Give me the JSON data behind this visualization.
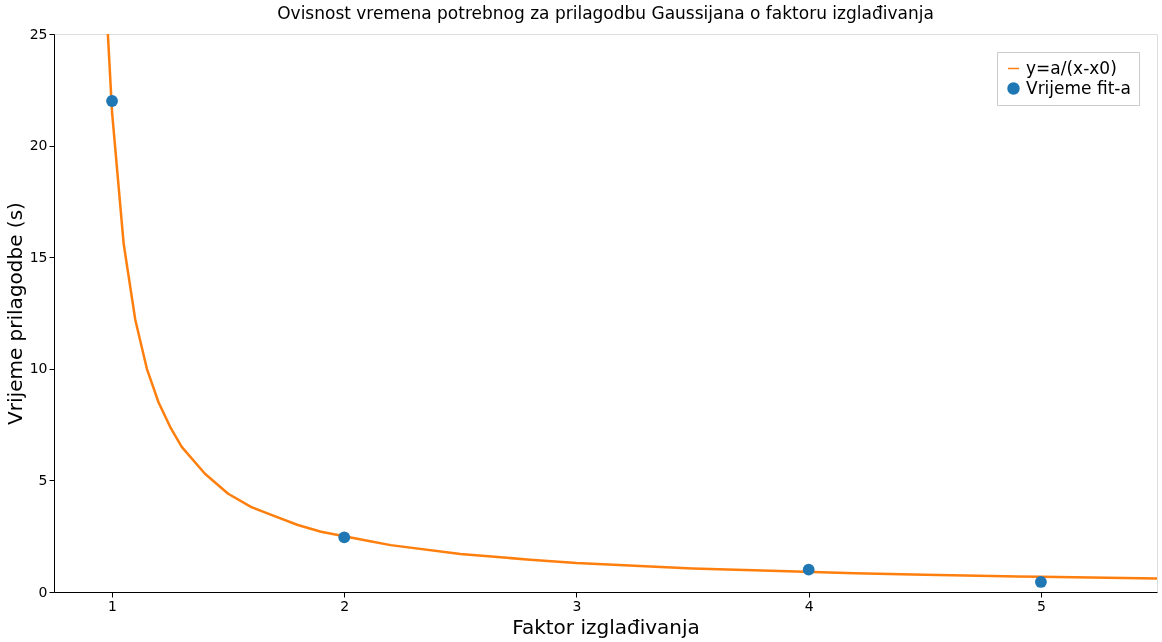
{
  "chart_data": {
    "type": "scatter",
    "title": "Ovisnost vremena potrebnog za prilagodbu Gaussijana o faktoru izglađivanja",
    "xlabel": "Faktor izglađivanja",
    "ylabel": "Vrijeme prilagodbe (s)",
    "xlim": [
      0.75,
      5.5
    ],
    "ylim": [
      0,
      25
    ],
    "xticks": [
      1,
      2,
      3,
      4,
      5
    ],
    "yticks": [
      0,
      5,
      10,
      15,
      20,
      25
    ],
    "grid": false,
    "legend": "top right",
    "series": [
      {
        "name": "y=a/(x-x0)",
        "type": "line",
        "color": "#ff7f0e",
        "line_style": "solid",
        "x": [
          0.982,
          1.0,
          1.05,
          1.1,
          1.15,
          1.2,
          1.25,
          1.3,
          1.4,
          1.5,
          1.6,
          1.7,
          1.8,
          1.9,
          2.1,
          2.2,
          2.5,
          2.8,
          3.0,
          3.5,
          3.8,
          4.2,
          4.5,
          5.0,
          5.5
        ],
        "values": [
          25,
          21.5,
          15.6,
          12.2,
          10.0,
          8.5,
          7.4,
          6.5,
          5.3,
          4.4,
          3.8,
          3.4,
          3.0,
          2.7,
          2.3,
          2.1,
          1.7,
          1.45,
          1.3,
          1.05,
          0.96,
          0.84,
          0.77,
          0.68,
          0.6
        ]
      },
      {
        "name": "Vrijeme fit-a",
        "marker": "circle",
        "color": "#1f77b4",
        "x": [
          1,
          2,
          4,
          5
        ],
        "values": [
          22,
          2.45,
          1.0,
          0.45
        ]
      }
    ]
  }
}
